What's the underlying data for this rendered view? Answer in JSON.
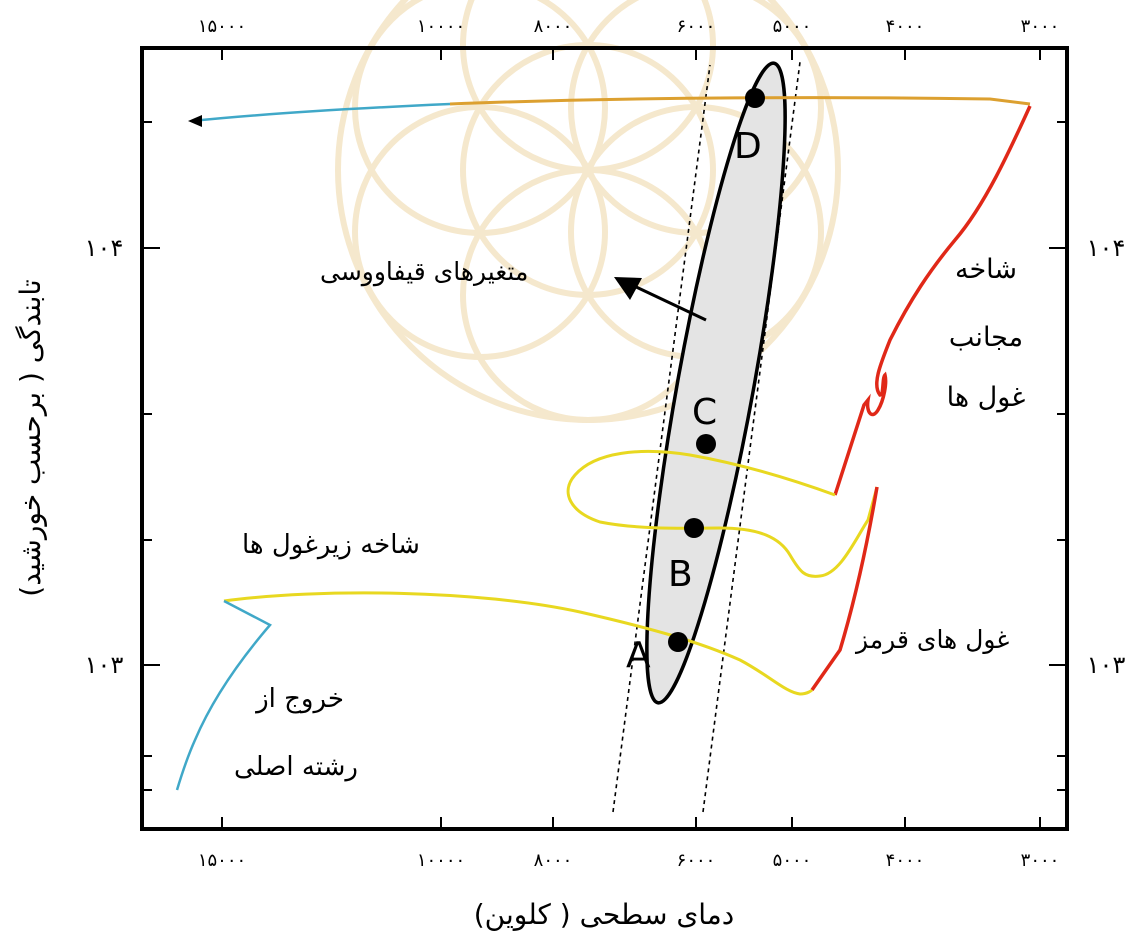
{
  "diagram": {
    "axes": {
      "x_label": "دمای سطحی ( کلوین)",
      "y_label": "تابندگی ( برحسب خورشید)",
      "x_ticks": [
        "۱۵۰۰۰",
        "۱۰۰۰۰",
        "۸۰۰۰",
        "۶۰۰۰",
        "۵۰۰۰",
        "۴۰۰۰",
        "۳۰۰۰"
      ],
      "y_ticks": [
        "۱۰۳",
        "۱۰۴"
      ]
    },
    "regions": {
      "red_giant_branch": [
        "شاخه",
        "مجانب",
        "غول ها"
      ],
      "cepheids": "متغیرهای قیفاووسی",
      "subgiant_branch": "شاخه زیرغول ها",
      "red_giants": "غول های قرمز",
      "leaving_main_sequence": [
        "خروج از",
        "رشته اصلی"
      ]
    },
    "points": [
      "A",
      "B",
      "C",
      "D"
    ],
    "colors": {
      "track_yellow": "#e8d820",
      "track_orange": "#dca030",
      "track_red": "#e02818",
      "track_blue": "#40a8c8",
      "instability_fill": "#e4e4e4",
      "frame": "#000000"
    }
  }
}
